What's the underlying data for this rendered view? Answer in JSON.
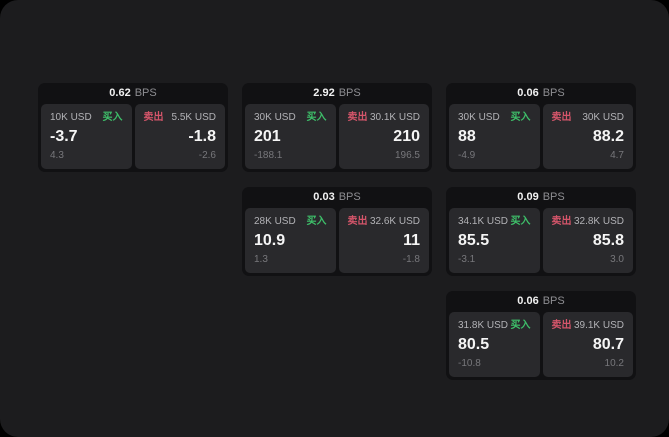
{
  "labels": {
    "bps_unit": "BPS",
    "buy": "买入",
    "sell": "卖出"
  },
  "colors": {
    "background": "#000000",
    "panel": "#1c1c1e",
    "card": "#111113",
    "side_panel": "#29292c",
    "buy_green": "#3ec06a",
    "sell_red": "#d4556a",
    "value_white": "#f5f5f5",
    "muted_gray": "#77777b"
  },
  "cards": [
    {
      "bps": "0.62",
      "buy": {
        "amount": "10K USD",
        "value": "-3.7",
        "sub": "4.3"
      },
      "sell": {
        "amount": "5.5K USD",
        "value": "-1.8",
        "sub": "-2.6"
      }
    },
    {
      "bps": "2.92",
      "buy": {
        "amount": "30K USD",
        "value": "201",
        "sub": "-188.1"
      },
      "sell": {
        "amount": "30.1K USD",
        "value": "210",
        "sub": "196.5"
      }
    },
    {
      "bps": "0.06",
      "buy": {
        "amount": "30K USD",
        "value": "88",
        "sub": "-4.9"
      },
      "sell": {
        "amount": "30K USD",
        "value": "88.2",
        "sub": "4.7"
      }
    },
    {
      "bps": "0.03",
      "buy": {
        "amount": "28K USD",
        "value": "10.9",
        "sub": "1.3"
      },
      "sell": {
        "amount": "32.6K USD",
        "value": "11",
        "sub": "-1.8"
      }
    },
    {
      "bps": "0.09",
      "buy": {
        "amount": "34.1K USD",
        "value": "85.5",
        "sub": "-3.1"
      },
      "sell": {
        "amount": "32.8K USD",
        "value": "85.8",
        "sub": "3.0"
      }
    },
    {
      "bps": "0.06",
      "buy": {
        "amount": "31.8K USD",
        "value": "80.5",
        "sub": "-10.8"
      },
      "sell": {
        "amount": "39.1K USD",
        "value": "80.7",
        "sub": "10.2"
      }
    }
  ]
}
